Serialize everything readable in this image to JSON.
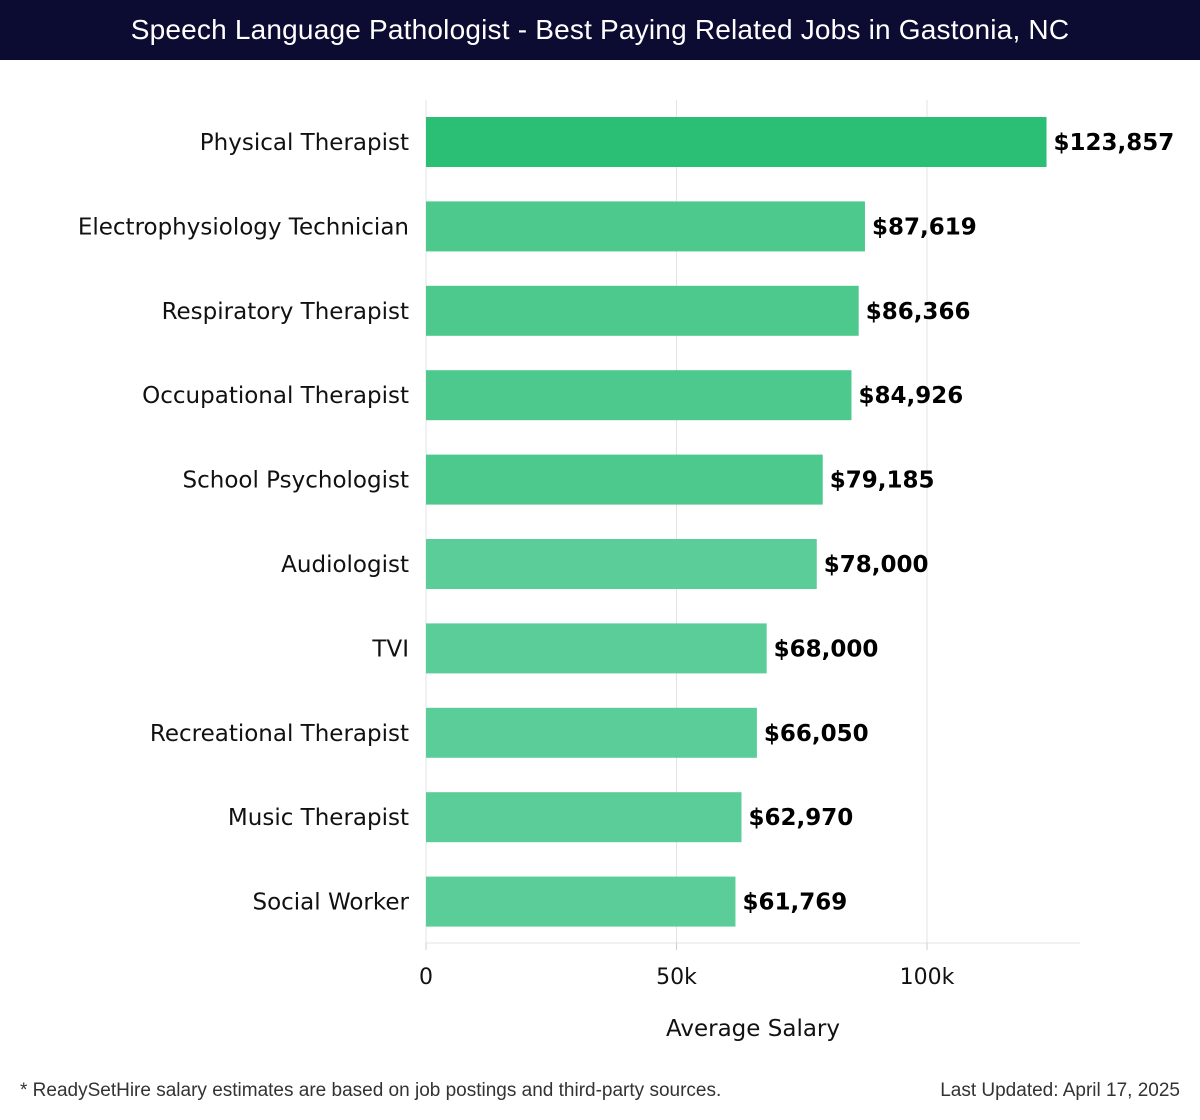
{
  "header": {
    "title": "Speech Language Pathologist - Best Paying Related Jobs in Gastonia, NC"
  },
  "chart_data": {
    "type": "bar",
    "orientation": "horizontal",
    "categories": [
      "Physical Therapist",
      "Electrophysiology Technician",
      "Respiratory Therapist",
      "Occupational Therapist",
      "School Psychologist",
      "Audiologist",
      "TVI",
      "Recreational Therapist",
      "Music Therapist",
      "Social Worker"
    ],
    "values": [
      123857,
      87619,
      86366,
      84926,
      79185,
      78000,
      68000,
      66050,
      62970,
      61769
    ],
    "value_labels": [
      "$123,857",
      "$87,619",
      "$86,366",
      "$84,926",
      "$79,185",
      "$78,000",
      "$68,000",
      "$66,050",
      "$62,970",
      "$61,769"
    ],
    "xlabel": "Average Salary",
    "ylabel": "",
    "xlim": [
      0,
      130000
    ],
    "x_ticks": [
      0,
      50000,
      100000
    ],
    "x_tick_labels": [
      "0",
      "50k",
      "100k"
    ],
    "grid": true,
    "colors": {
      "top_bar": "#2bbf76",
      "bar": "#4ec98d",
      "bar_light": "#5bcd98",
      "grid": "#e3e3e3",
      "title_background": "#0c0c33"
    }
  },
  "footer": {
    "note": "* ReadySetHire salary estimates are based on job postings and third-party sources.",
    "updated": "Last Updated: April 17, 2025"
  }
}
